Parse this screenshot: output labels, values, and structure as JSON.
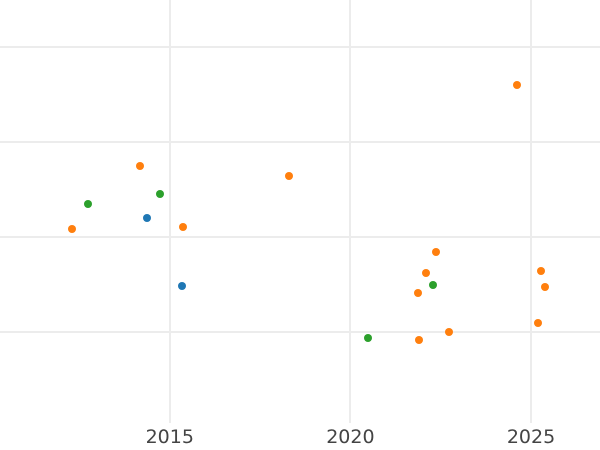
{
  "chart_data": {
    "type": "scatter",
    "title": "",
    "xlabel": "",
    "ylabel": "",
    "grid": true,
    "legend": "none",
    "x_domain": [
      2010.3,
      2026.91
    ],
    "y_domain": [
      0.046,
      4.49
    ],
    "x_ticks": [
      {
        "value": 2015,
        "label": "2015"
      },
      {
        "value": 2020,
        "label": "2020"
      },
      {
        "value": 2025,
        "label": "2025"
      }
    ],
    "y_gridlines": [
      1,
      2,
      3,
      4
    ],
    "y_tick_labels_visible": false,
    "marker_diameter_px": 8,
    "series": [
      {
        "name": "orange",
        "color": "#ff7f0e",
        "points": [
          [
            2012.3,
            2.08
          ],
          [
            2014.17,
            2.75
          ],
          [
            2015.37,
            2.1
          ],
          [
            2018.29,
            2.64
          ],
          [
            2021.87,
            1.41
          ],
          [
            2021.91,
            0.92
          ],
          [
            2022.09,
            1.62
          ],
          [
            2022.37,
            1.84
          ],
          [
            2022.74,
            1.0
          ],
          [
            2024.62,
            3.6
          ],
          [
            2025.18,
            1.1
          ],
          [
            2025.28,
            1.64
          ],
          [
            2025.4,
            1.47
          ]
        ]
      },
      {
        "name": "green",
        "color": "#2ca02c",
        "points": [
          [
            2012.74,
            2.35
          ],
          [
            2014.73,
            2.45
          ],
          [
            2020.49,
            0.94
          ],
          [
            2022.29,
            1.5
          ]
        ]
      },
      {
        "name": "blue",
        "color": "#1f77b4",
        "points": [
          [
            2014.36,
            2.2
          ],
          [
            2015.34,
            1.49
          ]
        ]
      }
    ]
  },
  "styles": {
    "background": "#ffffff",
    "gridline_color": "#ececec",
    "tick_label_color": "#444444"
  }
}
